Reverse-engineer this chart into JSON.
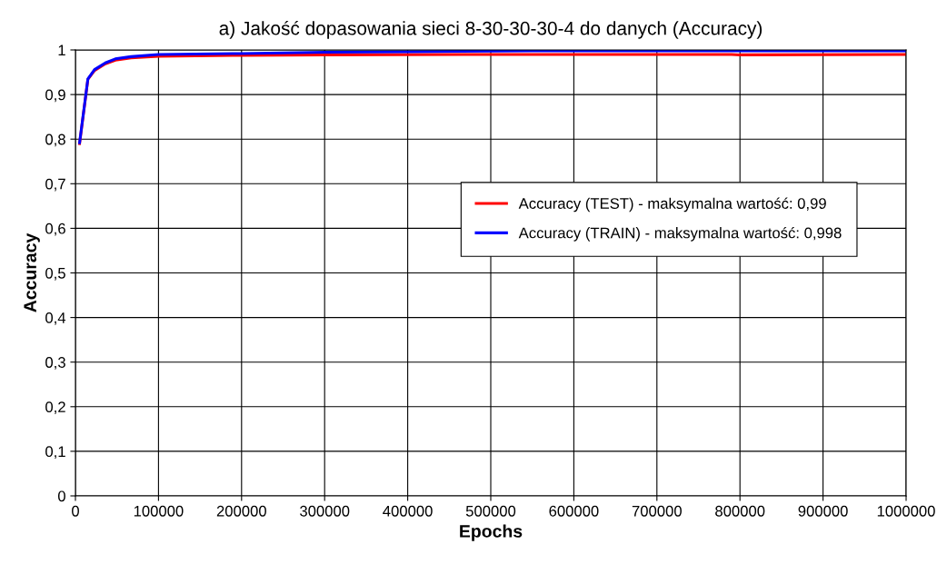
{
  "chart_data": {
    "type": "line",
    "title": "a) Jakość dopasowania sieci 8-30-30-30-4 do danych (Accuracy)",
    "xlabel": "Epochs",
    "ylabel": "Accuracy",
    "xlim": [
      0,
      1000000
    ],
    "xticks": [
      0,
      100000,
      200000,
      300000,
      400000,
      500000,
      600000,
      700000,
      800000,
      900000,
      1000000
    ],
    "ylim": [
      0,
      1
    ],
    "yticks": [
      {
        "value": 0,
        "label": "0"
      },
      {
        "value": 0.1,
        "label": "0,1"
      },
      {
        "value": 0.2,
        "label": "0,2"
      },
      {
        "value": 0.3,
        "label": "0,3"
      },
      {
        "value": 0.4,
        "label": "0,4"
      },
      {
        "value": 0.5,
        "label": "0,5"
      },
      {
        "value": 0.6,
        "label": "0,6"
      },
      {
        "value": 0.7,
        "label": "0,7"
      },
      {
        "value": 0.8,
        "label": "0,8"
      },
      {
        "value": 0.9,
        "label": "0,9"
      },
      {
        "value": 1,
        "label": "1"
      }
    ],
    "grid": true,
    "legend": "right",
    "marker": "none",
    "line_style": "solid",
    "series": [
      {
        "name": "Accuracy (TEST) - maksymalna wartość: 0,99",
        "color": "#ff0000",
        "x": [
          5000,
          15000,
          23000,
          36000,
          48000,
          67000,
          100000,
          200000,
          300000,
          500000,
          790000,
          800000,
          1000000
        ],
        "values": [
          0.79,
          0.934,
          0.954,
          0.969,
          0.977,
          0.982,
          0.986,
          0.988,
          0.989,
          0.99,
          0.99,
          0.989,
          0.99
        ]
      },
      {
        "name": "Accuracy (TRAIN) - maksymalna wartość: 0,998",
        "color": "#0000ff",
        "x": [
          5000,
          15000,
          23000,
          36000,
          48000,
          67000,
          100000,
          200000,
          300000,
          400000,
          550000,
          700000,
          1000000
        ],
        "values": [
          0.792,
          0.935,
          0.956,
          0.971,
          0.98,
          0.985,
          0.99,
          0.992,
          0.995,
          0.996,
          0.998,
          0.998,
          0.998
        ]
      }
    ]
  }
}
